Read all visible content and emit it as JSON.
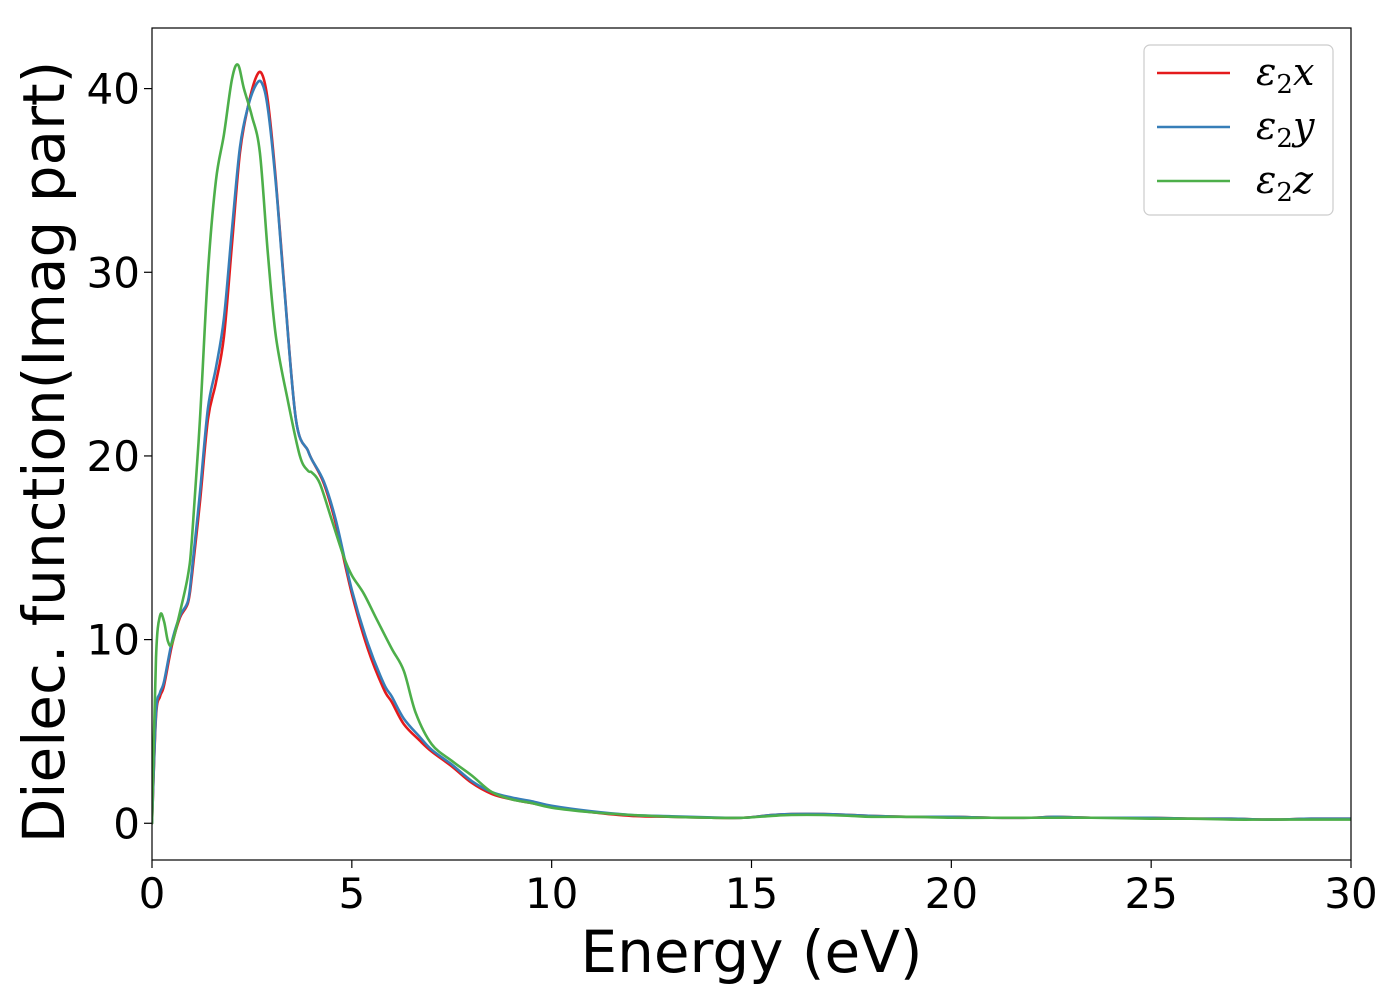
{
  "chart_data": {
    "type": "line",
    "title": "",
    "xlabel": "Energy (eV)",
    "ylabel": "Dielec. function(Imag part)",
    "xlim": [
      0,
      30
    ],
    "ylim": [
      -2,
      43.3
    ],
    "xticks": [
      0,
      5,
      10,
      15,
      20,
      25,
      30
    ],
    "yticks": [
      0,
      10,
      20,
      30,
      40
    ],
    "grid": false,
    "legend_position": "top-right",
    "series": [
      {
        "name": "x",
        "legend": {
          "base": "ε",
          "sub": "2",
          "suffix": "x"
        },
        "color": "#e41a1c",
        "x": [
          0,
          0.1,
          0.2,
          0.3,
          0.5,
          0.7,
          0.9,
          1.0,
          1.2,
          1.4,
          1.6,
          1.8,
          2.0,
          2.2,
          2.4,
          2.6,
          2.75,
          2.9,
          3.1,
          3.3,
          3.6,
          3.9,
          4.0,
          4.3,
          4.6,
          5.0,
          5.4,
          5.8,
          6.0,
          6.3,
          6.7,
          7.0,
          7.5,
          8.0,
          8.5,
          9.0,
          9.5,
          10.0,
          11.0,
          12.0,
          13.0,
          14.0,
          14.8,
          15.5,
          16.0,
          16.8,
          17.5,
          18.0,
          19.0,
          20.0,
          21.0,
          22.0,
          22.6,
          23.5,
          25.0,
          26.0,
          27.0,
          28.0,
          29.0,
          30.0
        ],
        "values": [
          0,
          5.8,
          6.9,
          7.5,
          9.7,
          11.2,
          12.0,
          13.5,
          17.5,
          22.0,
          24.0,
          26.5,
          31.5,
          36.5,
          39.0,
          40.6,
          40.8,
          39.3,
          35.0,
          29.5,
          22.0,
          20.3,
          19.8,
          18.5,
          16.3,
          12.5,
          9.5,
          7.3,
          6.6,
          5.4,
          4.5,
          3.9,
          3.1,
          2.2,
          1.6,
          1.3,
          1.1,
          0.9,
          0.6,
          0.4,
          0.35,
          0.3,
          0.3,
          0.45,
          0.5,
          0.5,
          0.45,
          0.4,
          0.35,
          0.35,
          0.3,
          0.3,
          0.35,
          0.3,
          0.3,
          0.25,
          0.25,
          0.2,
          0.25,
          0.25
        ]
      },
      {
        "name": "y",
        "legend": {
          "base": "ε",
          "sub": "2",
          "suffix": "y"
        },
        "color": "#377eb8",
        "x": [
          0,
          0.1,
          0.2,
          0.3,
          0.5,
          0.7,
          0.9,
          1.0,
          1.2,
          1.4,
          1.6,
          1.8,
          2.0,
          2.2,
          2.4,
          2.6,
          2.75,
          2.9,
          3.1,
          3.3,
          3.6,
          3.9,
          4.0,
          4.3,
          4.6,
          5.0,
          5.4,
          5.8,
          6.0,
          6.3,
          6.7,
          7.0,
          7.5,
          8.0,
          8.5,
          9.0,
          9.5,
          10.0,
          11.0,
          12.0,
          13.0,
          14.0,
          14.8,
          15.5,
          16.0,
          16.8,
          17.5,
          18.0,
          19.0,
          20.0,
          21.0,
          22.0,
          22.6,
          23.5,
          25.0,
          26.0,
          27.0,
          28.0,
          29.0,
          30.0
        ],
        "values": [
          0,
          6.0,
          7.1,
          7.7,
          9.9,
          11.3,
          12.1,
          13.8,
          18.0,
          22.6,
          24.8,
          27.5,
          32.3,
          36.8,
          39.0,
          40.2,
          40.3,
          38.9,
          34.8,
          29.4,
          22.0,
          20.3,
          19.8,
          18.6,
          16.5,
          12.7,
          9.8,
          7.6,
          6.9,
          5.7,
          4.7,
          4.0,
          3.2,
          2.3,
          1.7,
          1.4,
          1.2,
          0.95,
          0.65,
          0.45,
          0.38,
          0.32,
          0.3,
          0.45,
          0.5,
          0.5,
          0.45,
          0.4,
          0.35,
          0.35,
          0.3,
          0.3,
          0.35,
          0.3,
          0.3,
          0.25,
          0.25,
          0.2,
          0.25,
          0.25
        ]
      },
      {
        "name": "z",
        "legend": {
          "base": "ε",
          "sub": "2",
          "suffix": "z"
        },
        "color": "#4daf4a",
        "x": [
          0,
          0.1,
          0.2,
          0.3,
          0.4,
          0.5,
          0.7,
          0.9,
          1.0,
          1.2,
          1.4,
          1.6,
          1.8,
          2.0,
          2.15,
          2.3,
          2.5,
          2.7,
          2.9,
          3.1,
          3.4,
          3.7,
          3.9,
          4.0,
          4.2,
          4.5,
          4.8,
          5.0,
          5.3,
          5.6,
          6.0,
          6.3,
          6.6,
          7.0,
          7.5,
          8.0,
          8.5,
          9.0,
          9.5,
          10.0,
          11.0,
          12.0,
          13.0,
          14.0,
          14.8,
          15.5,
          16.0,
          16.8,
          17.5,
          18.0,
          19.0,
          20.0,
          21.0,
          22.0,
          22.6,
          23.5,
          25.0,
          26.0,
          27.0,
          28.0,
          29.0,
          30.0
        ],
        "values": [
          0,
          9.0,
          11.3,
          11.0,
          9.9,
          9.8,
          11.5,
          13.5,
          15.5,
          22.0,
          30.0,
          35.0,
          37.5,
          40.5,
          41.3,
          40.0,
          38.5,
          36.5,
          31.0,
          26.5,
          23.0,
          20.0,
          19.2,
          19.1,
          18.5,
          16.5,
          14.5,
          13.5,
          12.5,
          11.2,
          9.5,
          8.3,
          6.0,
          4.3,
          3.4,
          2.6,
          1.7,
          1.3,
          1.1,
          0.85,
          0.6,
          0.45,
          0.35,
          0.3,
          0.3,
          0.4,
          0.45,
          0.45,
          0.4,
          0.35,
          0.35,
          0.3,
          0.3,
          0.3,
          0.3,
          0.3,
          0.25,
          0.25,
          0.2,
          0.2,
          0.2,
          0.2
        ]
      }
    ]
  }
}
